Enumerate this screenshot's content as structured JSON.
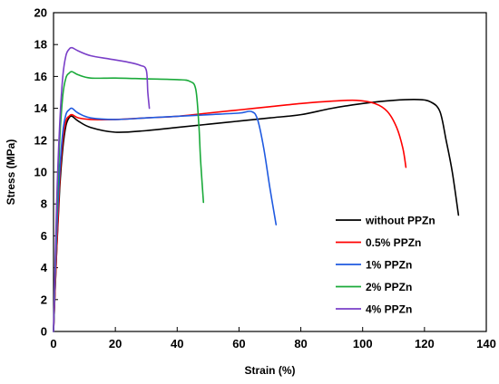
{
  "chart_data": {
    "type": "line",
    "title": "",
    "xlabel": "Strain (%)",
    "ylabel": "Stress (MPa)",
    "xlim": [
      0,
      140
    ],
    "ylim": [
      0,
      20
    ],
    "xticks": [
      "0",
      "20",
      "40",
      "60",
      "80",
      "100",
      "120",
      "140"
    ],
    "yticks": [
      "0",
      "2",
      "4",
      "6",
      "8",
      "10",
      "12",
      "14",
      "16",
      "18",
      "20"
    ],
    "grid": false,
    "legend_position": "bottom-right",
    "series": [
      {
        "name": "without PPZn",
        "color": "#000000",
        "points": [
          [
            0,
            0
          ],
          [
            1,
            5
          ],
          [
            2,
            9
          ],
          [
            3,
            11.5
          ],
          [
            4,
            12.9
          ],
          [
            5,
            13.4
          ],
          [
            6,
            13.5
          ],
          [
            8,
            13.2
          ],
          [
            12,
            12.8
          ],
          [
            20,
            12.5
          ],
          [
            30,
            12.6
          ],
          [
            40,
            12.8
          ],
          [
            50,
            13.0
          ],
          [
            60,
            13.2
          ],
          [
            70,
            13.4
          ],
          [
            80,
            13.6
          ],
          [
            90,
            14.0
          ],
          [
            100,
            14.3
          ],
          [
            110,
            14.5
          ],
          [
            118,
            14.55
          ],
          [
            122,
            14.4
          ],
          [
            125,
            13.8
          ],
          [
            127,
            12.0
          ],
          [
            129,
            10.0
          ],
          [
            131,
            7.3
          ]
        ]
      },
      {
        "name": "0.5% PPZn",
        "color": "#ff0000",
        "points": [
          [
            0,
            0
          ],
          [
            1,
            5
          ],
          [
            2,
            9.5
          ],
          [
            3,
            12
          ],
          [
            4,
            13.2
          ],
          [
            5,
            13.5
          ],
          [
            6,
            13.6
          ],
          [
            8,
            13.4
          ],
          [
            12,
            13.3
          ],
          [
            20,
            13.3
          ],
          [
            30,
            13.4
          ],
          [
            40,
            13.5
          ],
          [
            50,
            13.7
          ],
          [
            60,
            13.9
          ],
          [
            70,
            14.1
          ],
          [
            80,
            14.3
          ],
          [
            90,
            14.45
          ],
          [
            98,
            14.5
          ],
          [
            104,
            14.3
          ],
          [
            108,
            13.8
          ],
          [
            111,
            12.8
          ],
          [
            113,
            11.5
          ],
          [
            114,
            10.3
          ]
        ]
      },
      {
        "name": "1% PPZn",
        "color": "#1f5ae0",
        "points": [
          [
            0,
            0
          ],
          [
            1,
            6
          ],
          [
            2,
            10
          ],
          [
            3,
            12.5
          ],
          [
            4,
            13.6
          ],
          [
            5,
            13.9
          ],
          [
            6,
            14.0
          ],
          [
            8,
            13.7
          ],
          [
            12,
            13.4
          ],
          [
            20,
            13.3
          ],
          [
            30,
            13.4
          ],
          [
            40,
            13.5
          ],
          [
            50,
            13.6
          ],
          [
            60,
            13.7
          ],
          [
            64,
            13.8
          ],
          [
            66,
            13.3
          ],
          [
            68,
            11.5
          ],
          [
            70,
            9.0
          ],
          [
            72,
            6.7
          ]
        ]
      },
      {
        "name": "2% PPZn",
        "color": "#1aaa3a",
        "points": [
          [
            0,
            0
          ],
          [
            1,
            7
          ],
          [
            2,
            12
          ],
          [
            3,
            14.8
          ],
          [
            4,
            15.9
          ],
          [
            5,
            16.2
          ],
          [
            6,
            16.3
          ],
          [
            8,
            16.1
          ],
          [
            12,
            15.9
          ],
          [
            20,
            15.9
          ],
          [
            30,
            15.85
          ],
          [
            40,
            15.8
          ],
          [
            44,
            15.7
          ],
          [
            46,
            15.2
          ],
          [
            47,
            13.0
          ],
          [
            47.5,
            11.0
          ],
          [
            48,
            9.5
          ],
          [
            48.5,
            8.1
          ]
        ]
      },
      {
        "name": "4% PPZn",
        "color": "#7a3fc8",
        "points": [
          [
            0,
            0
          ],
          [
            1,
            8
          ],
          [
            2,
            13
          ],
          [
            3,
            16
          ],
          [
            4,
            17.3
          ],
          [
            5,
            17.7
          ],
          [
            6,
            17.8
          ],
          [
            8,
            17.6
          ],
          [
            12,
            17.3
          ],
          [
            18,
            17.1
          ],
          [
            24,
            16.9
          ],
          [
            28,
            16.7
          ],
          [
            30,
            16.4
          ],
          [
            30.5,
            15.0
          ],
          [
            31,
            14.0
          ]
        ]
      }
    ]
  }
}
